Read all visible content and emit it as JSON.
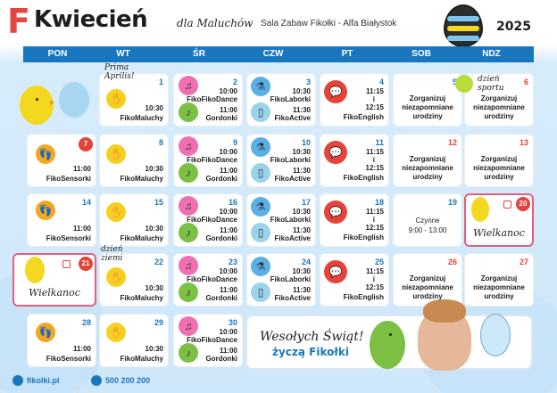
{
  "header": {
    "logo_letter": "F",
    "title": "Kwiecień",
    "subtitle": "dla Maluchów",
    "venue": "Sala Zabaw Fikołki -  Alfa Białystok",
    "year": "2025"
  },
  "days": [
    "PON",
    "WT",
    "ŚR",
    "CZW",
    "PT",
    "SOB",
    "NDZ"
  ],
  "colors": {
    "header_bar": "#1b77bd",
    "sunday_red": "#e3433b",
    "holiday_border": "#e3607e",
    "background": "#cfe7fa"
  },
  "cells": {
    "d1": {
      "num": "1",
      "time": "10:30",
      "name": "FikoMaluchy",
      "note": "Prima Aprilis!"
    },
    "d2": {
      "num": "2",
      "t1": "10:00",
      "n1": "FikoFikoDance",
      "t2": "11:00",
      "n2": "Gordonki"
    },
    "d3": {
      "num": "3",
      "t1": "10:30",
      "n1": "FikoLaborki",
      "t2": "11:30",
      "n2": "FikoActive"
    },
    "d4": {
      "num": "4",
      "t1": "11:15",
      "sep": "i",
      "t2": "12:15",
      "n": "FikoEnglish"
    },
    "d5": {
      "num": "5",
      "line1": "Zorganizuj",
      "line2": "niezapomniane",
      "line3": "urodziny"
    },
    "d6": {
      "num": "6",
      "note": "dzień sportu",
      "line1": "Zorganizuj",
      "line2": "niezapomniane",
      "line3": "urodziny"
    },
    "d7": {
      "num": "7",
      "time": "11:00",
      "name": "FikoSensorki"
    },
    "d8": {
      "num": "8",
      "time": "10:30",
      "name": "FikoMaluchy"
    },
    "d9": {
      "num": "9",
      "t1": "10:00",
      "n1": "FikoFikoDance",
      "t2": "11:00",
      "n2": "Gordonki"
    },
    "d10": {
      "num": "10",
      "t1": "10:30",
      "n1": "FikoLaborki",
      "t2": "11:30",
      "n2": "FikoActive"
    },
    "d11": {
      "num": "11",
      "t1": "11:15",
      "sep": "i",
      "t2": "12:15",
      "n": "FikoEnglish"
    },
    "d12": {
      "num": "12",
      "line1": "Zorganizuj",
      "line2": "niezapomniane",
      "line3": "urodziny"
    },
    "d13": {
      "num": "13",
      "line1": "Zorganizuj",
      "line2": "niezapomniane",
      "line3": "urodziny"
    },
    "d14": {
      "num": "14",
      "time": "11:00",
      "name": "FikoSensorki"
    },
    "d15": {
      "num": "15",
      "time": "10:30",
      "name": "FikoMaluchy"
    },
    "d16": {
      "num": "16",
      "t1": "10:00",
      "n1": "FikoFikoDance",
      "t2": "11:00",
      "n2": "Gordonki"
    },
    "d17": {
      "num": "17",
      "t1": "10:30",
      "n1": "FikoLaborki",
      "t2": "11:30",
      "n2": "FikoActive"
    },
    "d18": {
      "num": "18",
      "t1": "11:15",
      "sep": "i",
      "t2": "12:15",
      "n": "FikoEnglish"
    },
    "d19": {
      "num": "19",
      "line1": "Czynne",
      "line2": "9:00 - 13:00"
    },
    "d20": {
      "num": "20",
      "label": "Wielkanoc"
    },
    "d21": {
      "num": "21",
      "label": "Wielkanoc"
    },
    "d22": {
      "num": "22",
      "time": "10:30",
      "name": "FikoMaluchy",
      "note": "dzień ziemi"
    },
    "d23": {
      "num": "23",
      "t1": "10:00",
      "n1": "FikoFikoDance",
      "t2": "11:00",
      "n2": "Gordonki"
    },
    "d24": {
      "num": "24",
      "t1": "10:30",
      "n1": "FikoLaborki",
      "t2": "11:30",
      "n2": "FikoActive"
    },
    "d25": {
      "num": "25",
      "t1": "11:15",
      "sep": "i",
      "t2": "12:15",
      "n": "FikoEnglish"
    },
    "d26": {
      "num": "26",
      "line1": "Zorganizuj",
      "line2": "niezapomniane",
      "line3": "urodziny"
    },
    "d27": {
      "num": "27",
      "line1": "Zorganizuj",
      "line2": "niezapomniane",
      "line3": "urodziny"
    },
    "d28": {
      "num": "28",
      "time": "11:00",
      "name": "FikoSensorki"
    },
    "d29": {
      "num": "29",
      "time": "10:30",
      "name": "FikoMaluchy"
    },
    "d30": {
      "num": "30",
      "t1": "10:00",
      "n1": "FikoFikoDance",
      "t2": "11:00",
      "n2": "Gordonki"
    }
  },
  "greeting": {
    "line1": "Wesołych Świąt!",
    "line2": "życzą Fikołki"
  },
  "footer": {
    "website": "fikolki.pl",
    "phone": "500 200 200"
  },
  "icons": {
    "sensory": "feet-icon",
    "maluchy": "hand-icon",
    "dance": "music-note-icon",
    "laborki": "flask-icon",
    "active": "bottle-icon",
    "english": "speech-bubble-icon"
  }
}
